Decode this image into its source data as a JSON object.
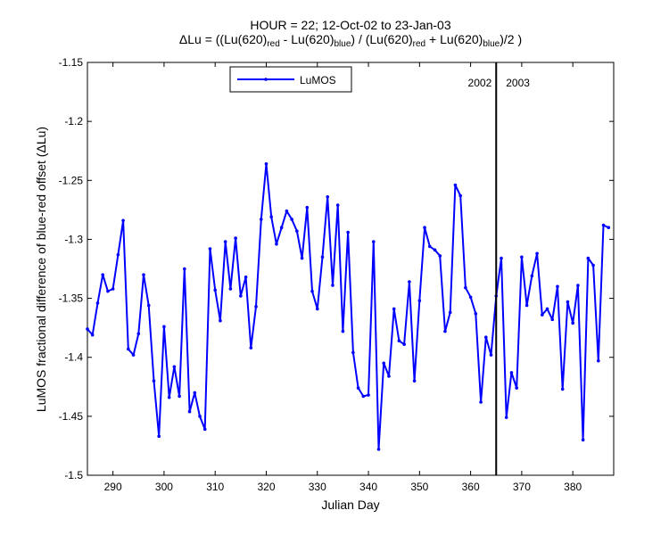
{
  "chart_data": {
    "type": "line",
    "title_line1": "HOUR = 22; 12-Oct-02 to 23-Jan-03",
    "title_line2": {
      "p1": "ΔLu = ((Lu(620)",
      "s1": "red",
      "p2": " - Lu(620)",
      "s2": "blue",
      "p3": ") / (Lu(620)",
      "s3": "red",
      "p4": " + Lu(620)",
      "s4": "blue",
      "p5": ")/2  )"
    },
    "xlabel": "Julian Day",
    "ylabel": "LuMOS fractional difference of blue-red offset (ΔLu)",
    "xlim": [
      285,
      388
    ],
    "ylim": [
      -1.5,
      -1.15
    ],
    "xticks": [
      290,
      300,
      310,
      320,
      330,
      340,
      350,
      360,
      370,
      380
    ],
    "yticks": [
      -1.5,
      -1.45,
      -1.4,
      -1.35,
      -1.3,
      -1.25,
      -1.2,
      -1.15
    ],
    "grid": false,
    "legend_position": "top-center",
    "series": [
      {
        "name": "LuMOS",
        "color": "#0000ff",
        "marker": "point",
        "x": [
          285,
          286,
          287,
          288,
          289,
          290,
          291,
          292,
          293,
          294,
          295,
          296,
          297,
          298,
          299,
          300,
          301,
          302,
          303,
          304,
          305,
          306,
          307,
          308,
          309,
          310,
          311,
          312,
          313,
          314,
          315,
          316,
          317,
          318,
          319,
          320,
          321,
          322,
          323,
          324,
          325,
          326,
          327,
          328,
          329,
          330,
          331,
          332,
          333,
          334,
          335,
          336,
          337,
          338,
          339,
          340,
          341,
          342,
          343,
          344,
          345,
          346,
          347,
          348,
          349,
          350,
          351,
          352,
          353,
          354,
          355,
          356,
          357,
          358,
          359,
          360,
          361,
          362,
          363,
          364,
          365,
          366,
          367,
          368,
          369,
          370,
          371,
          372,
          373,
          374,
          375,
          376,
          377,
          378,
          379,
          380,
          381,
          382,
          383,
          384,
          385,
          386,
          387
        ],
        "y": [
          -1.376,
          -1.381,
          -1.354,
          -1.33,
          -1.344,
          -1.342,
          -1.313,
          -1.284,
          -1.393,
          -1.398,
          -1.38,
          -1.33,
          -1.356,
          -1.42,
          -1.467,
          -1.374,
          -1.434,
          -1.408,
          -1.433,
          -1.325,
          -1.446,
          -1.43,
          -1.45,
          -1.461,
          -1.308,
          -1.343,
          -1.369,
          -1.302,
          -1.342,
          -1.299,
          -1.348,
          -1.332,
          -1.392,
          -1.357,
          -1.283,
          -1.236,
          -1.281,
          -1.304,
          -1.29,
          -1.276,
          -1.283,
          -1.293,
          -1.316,
          -1.273,
          -1.344,
          -1.359,
          -1.315,
          -1.264,
          -1.339,
          -1.271,
          -1.378,
          -1.294,
          -1.396,
          -1.426,
          -1.433,
          -1.432,
          -1.302,
          -1.478,
          -1.405,
          -1.416,
          -1.359,
          -1.386,
          -1.389,
          -1.336,
          -1.42,
          -1.352,
          -1.29,
          -1.306,
          -1.309,
          -1.314,
          -1.378,
          -1.362,
          -1.254,
          -1.263,
          -1.341,
          -1.349,
          -1.363,
          -1.438,
          -1.383,
          -1.398,
          -1.348,
          -1.316,
          -1.451,
          -1.413,
          -1.426,
          -1.315,
          -1.356,
          -1.331,
          -1.312,
          -1.364,
          -1.359,
          -1.368,
          -1.34,
          -1.427,
          -1.353,
          -1.371,
          -1.339,
          -1.47,
          -1.316,
          -1.322,
          -1.403,
          -1.288,
          -1.29
        ]
      }
    ],
    "vline": {
      "x": 365,
      "label_left": "2002",
      "label_right": "2003"
    }
  }
}
